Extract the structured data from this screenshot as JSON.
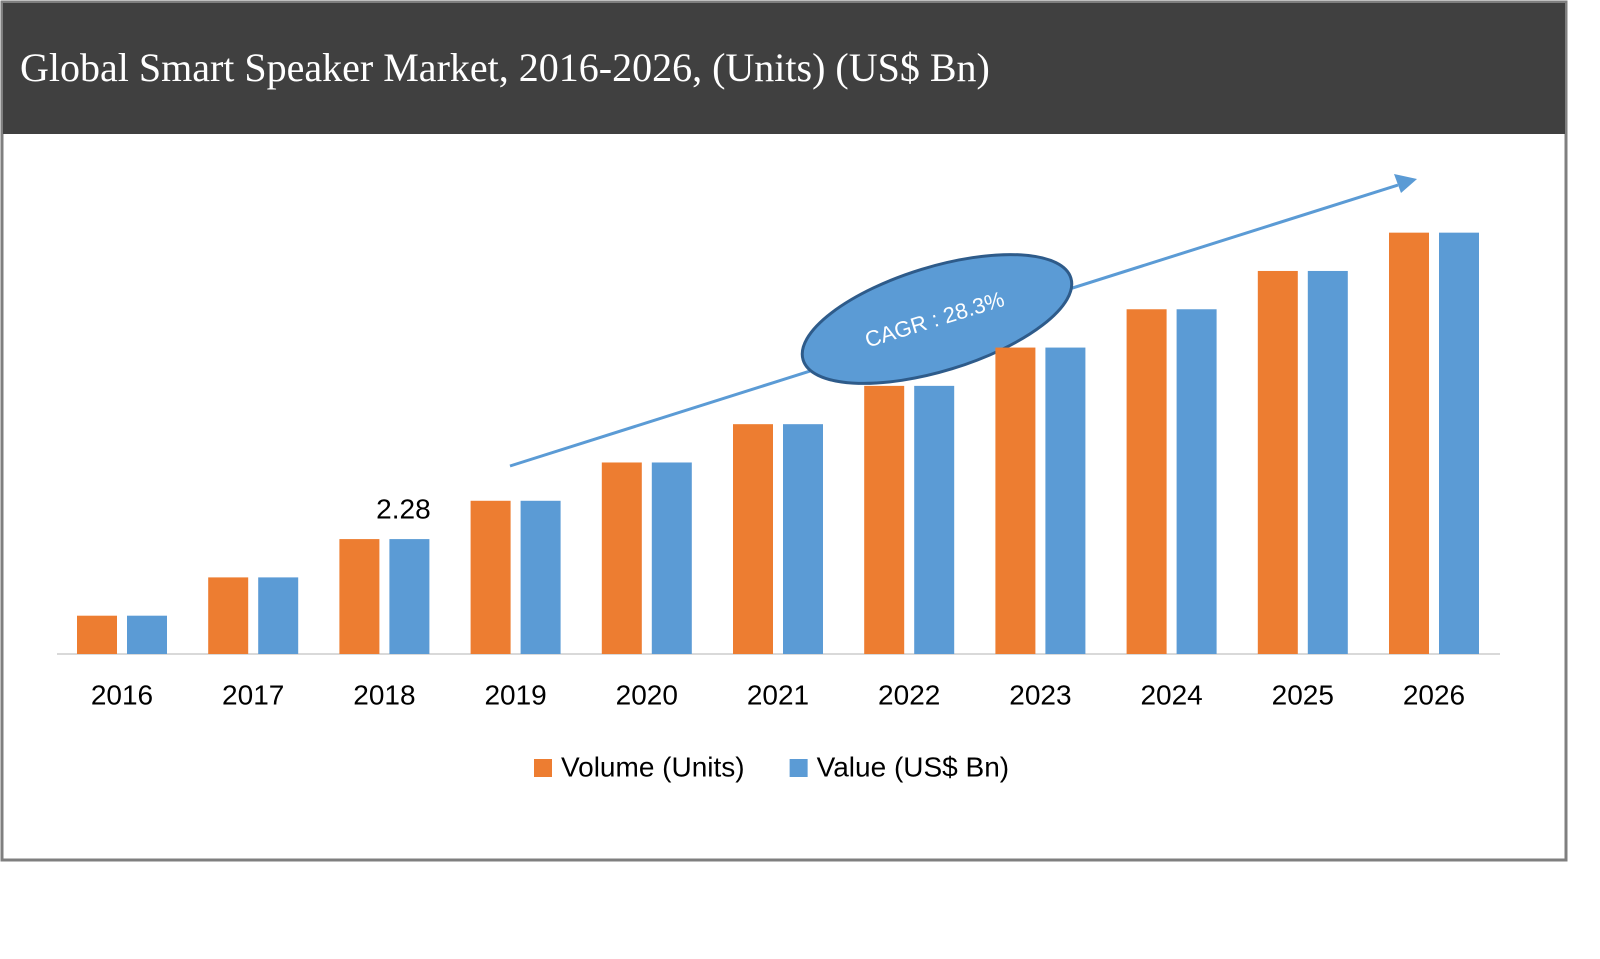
{
  "chart_data": {
    "type": "bar",
    "title": "Global Smart Speaker Market, 2016-2026, (Units) (US$ Bn)",
    "categories": [
      "2016",
      "2017",
      "2018",
      "2019",
      "2020",
      "2021",
      "2022",
      "2023",
      "2024",
      "2025",
      "2026"
    ],
    "series": [
      {
        "name": "Volume (Units)",
        "color": "#ed7d31",
        "values": [
          0.76,
          1.52,
          2.28,
          3.04,
          3.8,
          4.56,
          5.32,
          6.08,
          6.84,
          7.6,
          8.36
        ]
      },
      {
        "name": "Value (US$ Bn)",
        "color": "#5b9bd5",
        "values": [
          0.76,
          1.52,
          2.28,
          3.04,
          3.8,
          4.56,
          5.32,
          6.08,
          6.84,
          7.6,
          8.36
        ]
      }
    ],
    "data_label": {
      "series": 1,
      "index": 2
    },
    "annotation": "CAGR : 28.3%",
    "legend": "bottom"
  }
}
